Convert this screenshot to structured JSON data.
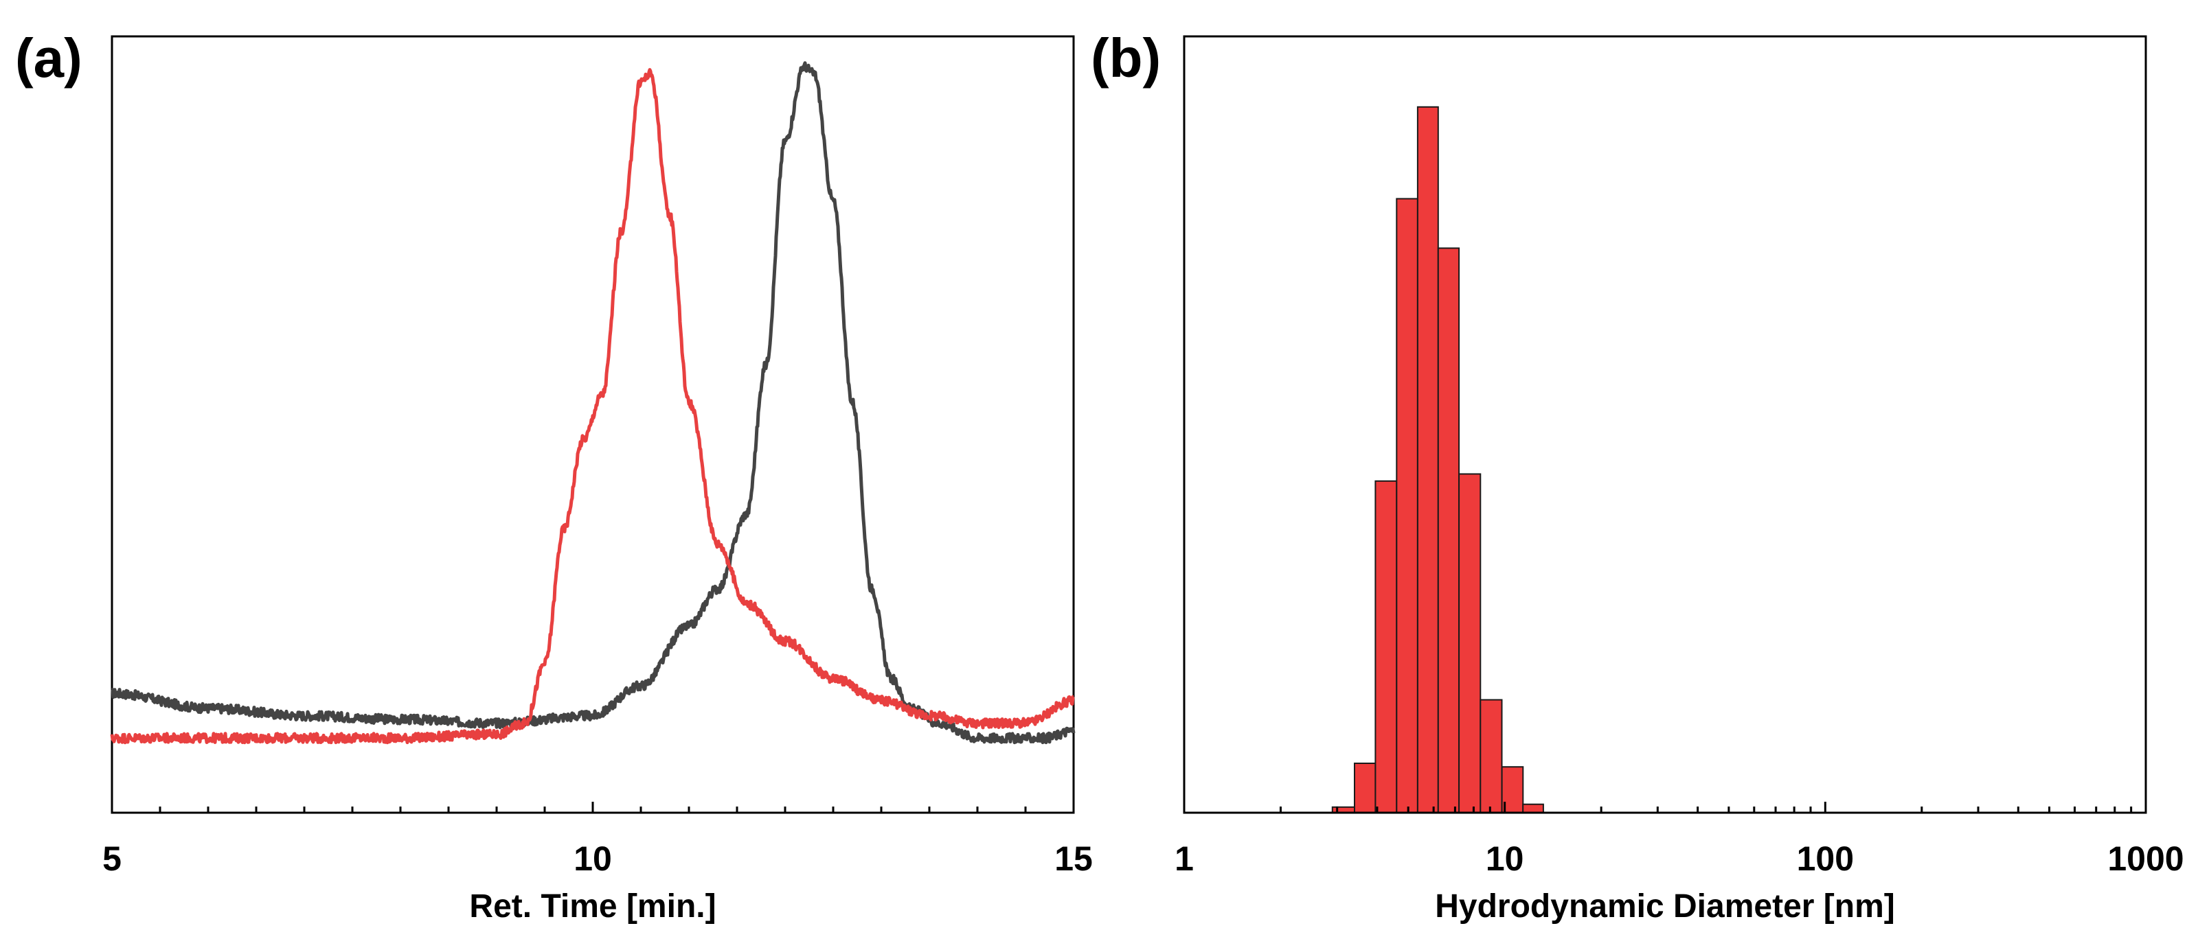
{
  "chart_data": [
    {
      "panel_label": "(a)",
      "type": "line",
      "title": "",
      "xlabel": "Ret. Time [min.]",
      "ylabel": "",
      "xlim": [
        5,
        15
      ],
      "ylim": [
        0,
        1.04
      ],
      "xticks": [
        {
          "value": 5,
          "label": "5"
        },
        {
          "value": 10,
          "label": "10"
        },
        {
          "value": 15,
          "label": "15"
        }
      ],
      "minor_xticks": [
        5.5,
        6,
        6.5,
        7,
        7.5,
        8,
        8.5,
        9,
        9.5,
        10.5,
        11,
        11.5,
        12,
        12.5,
        13,
        13.5,
        14,
        14.5
      ],
      "series": [
        {
          "name": "dark trace",
          "color": "#444444",
          "x": [
            5,
            6,
            7,
            8,
            9,
            10,
            10.5,
            11,
            11.3,
            11.6,
            11.8,
            12,
            12.2,
            12.3,
            12.5,
            12.7,
            12.9,
            13.1,
            13.3,
            13.6,
            14,
            14.3,
            14.7,
            15
          ],
          "y": [
            0.16,
            0.14,
            0.13,
            0.125,
            0.12,
            0.13,
            0.17,
            0.25,
            0.3,
            0.4,
            0.6,
            0.9,
            1.0,
            0.99,
            0.82,
            0.55,
            0.3,
            0.18,
            0.14,
            0.12,
            0.1,
            0.1,
            0.1,
            0.11
          ]
        },
        {
          "name": "red trace",
          "color": "#e84040",
          "x": [
            5,
            6,
            7,
            8,
            9,
            9.3,
            9.5,
            9.7,
            9.9,
            10.1,
            10.3,
            10.5,
            10.6,
            10.8,
            11,
            11.3,
            11.6,
            12,
            12.5,
            13,
            13.5,
            14,
            14.5,
            15
          ],
          "y": [
            0.1,
            0.1,
            0.1,
            0.1,
            0.105,
            0.12,
            0.2,
            0.38,
            0.5,
            0.56,
            0.78,
            0.98,
            0.99,
            0.8,
            0.55,
            0.36,
            0.28,
            0.23,
            0.18,
            0.15,
            0.13,
            0.12,
            0.12,
            0.15
          ]
        }
      ]
    },
    {
      "panel_label": "(b)",
      "type": "bar",
      "title": "",
      "xlabel": "Hydrodynamic Diameter [nm]",
      "ylabel": "",
      "xscale": "log",
      "xlim": [
        1,
        1000
      ],
      "ylim": [
        0,
        1.1
      ],
      "xticks": [
        {
          "value": 1,
          "label": "1"
        },
        {
          "value": 10,
          "label": "10"
        },
        {
          "value": 100,
          "label": "100"
        },
        {
          "value": 1000,
          "label": "1000"
        }
      ],
      "color": "#ee3b3b",
      "bins": [
        {
          "from": 2.9,
          "to": 3.4,
          "value": 0.008
        },
        {
          "from": 3.4,
          "to": 3.95,
          "value": 0.07
        },
        {
          "from": 3.95,
          "to": 4.6,
          "value": 0.47
        },
        {
          "from": 4.6,
          "to": 5.35,
          "value": 0.87
        },
        {
          "from": 5.35,
          "to": 6.2,
          "value": 1.0
        },
        {
          "from": 6.2,
          "to": 7.2,
          "value": 0.8
        },
        {
          "from": 7.2,
          "to": 8.4,
          "value": 0.48
        },
        {
          "from": 8.4,
          "to": 9.8,
          "value": 0.16
        },
        {
          "from": 9.8,
          "to": 11.4,
          "value": 0.065
        },
        {
          "from": 11.4,
          "to": 13.2,
          "value": 0.012
        }
      ]
    }
  ]
}
